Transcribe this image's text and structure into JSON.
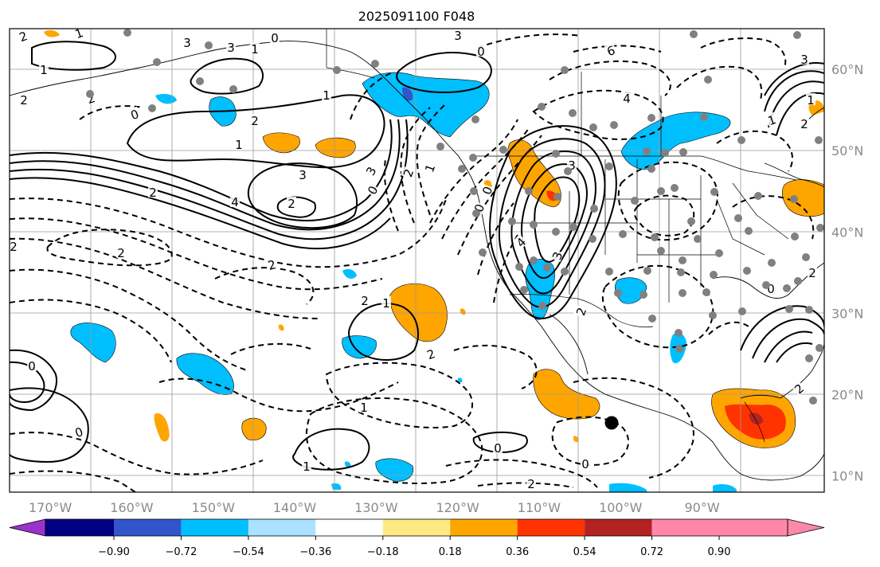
{
  "title": "2025091100 F048",
  "map": {
    "lon_range": [
      -175,
      -75
    ],
    "lat_range": [
      8,
      65
    ],
    "gridlines": true,
    "lon_labels": [
      "170°W",
      "160°W",
      "150°W",
      "140°W",
      "130°W",
      "120°W",
      "110°W",
      "100°W",
      "90°W"
    ],
    "lat_labels": [
      "60°N",
      "50°N",
      "40°N",
      "30°N",
      "20°N",
      "10°N"
    ],
    "contour_labels": [
      "2",
      "1",
      "0",
      "1",
      "3",
      "3",
      "2",
      "1",
      "0",
      "2",
      "1",
      "2",
      "1",
      "3",
      "2",
      "3",
      "4",
      "2",
      "2",
      "2",
      "0",
      "1",
      "2",
      "2",
      "1",
      "0",
      "1",
      "0",
      "2",
      "0",
      "1",
      "0",
      "6",
      "4",
      "3",
      "4",
      "3",
      "2",
      "0",
      "2",
      "1",
      "2",
      "1",
      "0",
      "2",
      "2",
      "0",
      "2",
      "0",
      "3",
      "3"
    ],
    "marker_style": "station dots (gray) and one black dot"
  },
  "colorbar": {
    "ticks": [
      "−0.90",
      "−0.72",
      "−0.54",
      "−0.36",
      "−0.18",
      "0.18",
      "0.36",
      "0.54",
      "0.72",
      "0.90"
    ],
    "colors": [
      "#9933cc",
      "#000080",
      "#3355cc",
      "#00bfff",
      "#aae2ff",
      "#ffffff",
      "#ffe985",
      "#ffa500",
      "#ff3300",
      "#b22222",
      "#ff88aa"
    ],
    "extend": "both"
  },
  "fill_colors": {
    "neg_strong": "#3355cc",
    "neg_mid": "#00bfff",
    "neg_weak": "#aae2ff",
    "pos_weak": "#ffe985",
    "pos_mid": "#ffa500",
    "pos_strong": "#ff3300",
    "pos_stronger": "#b22222"
  }
}
